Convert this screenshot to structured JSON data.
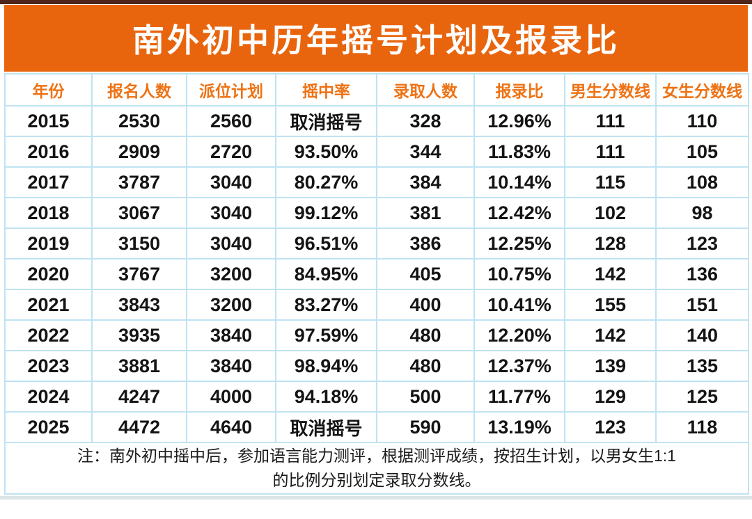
{
  "page": {
    "title": "南外初中历年摇号计划及报录比",
    "note": {
      "line1": "注：南外初中摇中后，参加语言能力测评，根据测评成绩，按招生计划，以男女生1:1",
      "line2": "的比例分别划定录取分数线。"
    }
  },
  "table": {
    "columns": [
      "年份",
      "报名人数",
      "派位计划",
      "摇中率",
      "录取人数",
      "报录比",
      "男生分数线",
      "女生分数线"
    ],
    "rows": [
      [
        "2015",
        "2530",
        "2560",
        "取消摇号",
        "328",
        "12.96%",
        "111",
        "110"
      ],
      [
        "2016",
        "2909",
        "2720",
        "93.50%",
        "344",
        "11.83%",
        "111",
        "105"
      ],
      [
        "2017",
        "3787",
        "3040",
        "80.27%",
        "384",
        "10.14%",
        "115",
        "108"
      ],
      [
        "2018",
        "3067",
        "3040",
        "99.12%",
        "381",
        "12.42%",
        "102",
        "98"
      ],
      [
        "2019",
        "3150",
        "3040",
        "96.51%",
        "386",
        "12.25%",
        "128",
        "123"
      ],
      [
        "2020",
        "3767",
        "3200",
        "84.95%",
        "405",
        "10.75%",
        "142",
        "136"
      ],
      [
        "2021",
        "3843",
        "3200",
        "83.27%",
        "400",
        "10.41%",
        "155",
        "151"
      ],
      [
        "2022",
        "3935",
        "3840",
        "97.59%",
        "480",
        "12.20%",
        "142",
        "140"
      ],
      [
        "2023",
        "3881",
        "3840",
        "98.94%",
        "480",
        "12.37%",
        "139",
        "135"
      ],
      [
        "2024",
        "4247",
        "4000",
        "94.18%",
        "500",
        "11.77%",
        "129",
        "125"
      ],
      [
        "2025",
        "4472",
        "4640",
        "取消摇号",
        "590",
        "13.19%",
        "123",
        "118"
      ]
    ]
  },
  "chart_data": {
    "type": "table",
    "title": "南外初中历年摇号计划及报录比",
    "columns": [
      "年份",
      "报名人数",
      "派位计划",
      "摇中率",
      "录取人数",
      "报录比",
      "男生分数线",
      "女生分数线"
    ],
    "rows": [
      [
        "2015",
        2530,
        2560,
        "取消摇号",
        328,
        "12.96%",
        111,
        110
      ],
      [
        "2016",
        2909,
        2720,
        "93.50%",
        344,
        "11.83%",
        111,
        105
      ],
      [
        "2017",
        3787,
        3040,
        "80.27%",
        384,
        "10.14%",
        115,
        108
      ],
      [
        "2018",
        3067,
        3040,
        "99.12%",
        381,
        "12.42%",
        102,
        98
      ],
      [
        "2019",
        3150,
        3040,
        "96.51%",
        386,
        "12.25%",
        128,
        123
      ],
      [
        "2020",
        3767,
        3200,
        "84.95%",
        405,
        "10.75%",
        142,
        136
      ],
      [
        "2021",
        3843,
        3200,
        "83.27%",
        400,
        "10.41%",
        155,
        151
      ],
      [
        "2022",
        3935,
        3840,
        "97.59%",
        480,
        "12.20%",
        142,
        140
      ],
      [
        "2023",
        3881,
        3840,
        "98.94%",
        480,
        "12.37%",
        139,
        135
      ],
      [
        "2024",
        4247,
        4000,
        "94.18%",
        500,
        "11.77%",
        129,
        125
      ],
      [
        "2025",
        4472,
        4640,
        "取消摇号",
        590,
        "13.19%",
        123,
        118
      ]
    ],
    "note": "注：南外初中摇中后，参加语言能力测评，根据测评成绩，按招生计划，以男女生1:1的比例分别划定录取分数线。"
  },
  "colors": {
    "banner_orange": "#e8650e",
    "header_text_orange": "#ee7214",
    "table_border_blue": "#bee3f2",
    "cell_text": "#141414",
    "top_strip": "#4e241b"
  }
}
